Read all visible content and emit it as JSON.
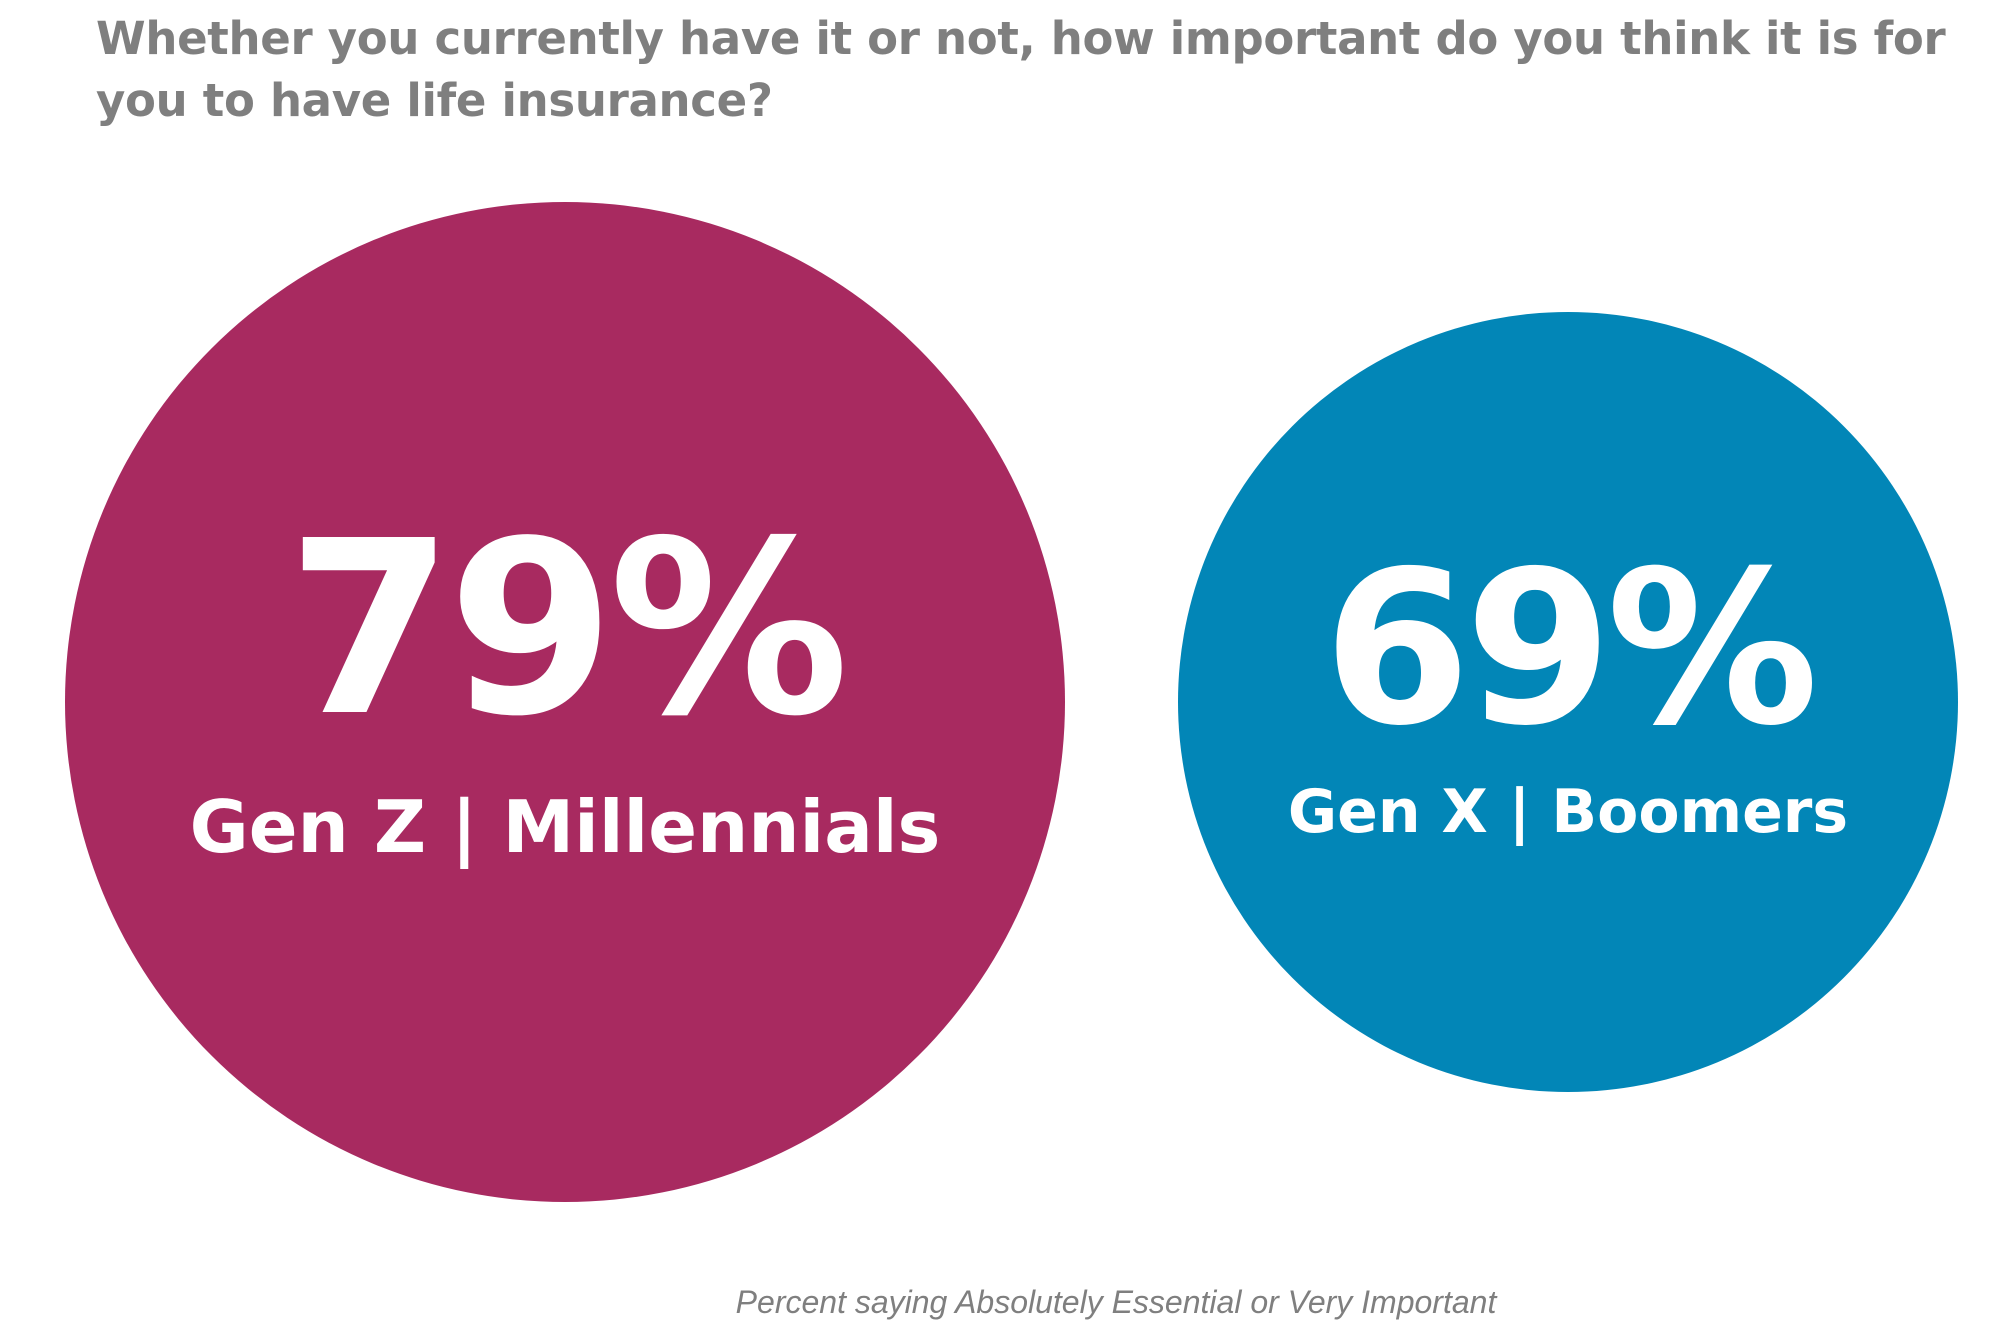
{
  "chart_data": {
    "type": "bubble",
    "title": "Whether you currently have it or not, how important do you think it is for you to have life insurance?",
    "note": "Percent saying Absolutely Essential or Very Important",
    "series": [
      {
        "label": "Gen Z | Millennials",
        "value": 79,
        "display": "79%",
        "color": "#a82a60"
      },
      {
        "label": "Gen X | Boomers",
        "value": 69,
        "display": "69%",
        "color": "#0286b7"
      }
    ]
  },
  "colors": {
    "text_gray": "#7f7f7f",
    "label_white": "#ffffff"
  }
}
